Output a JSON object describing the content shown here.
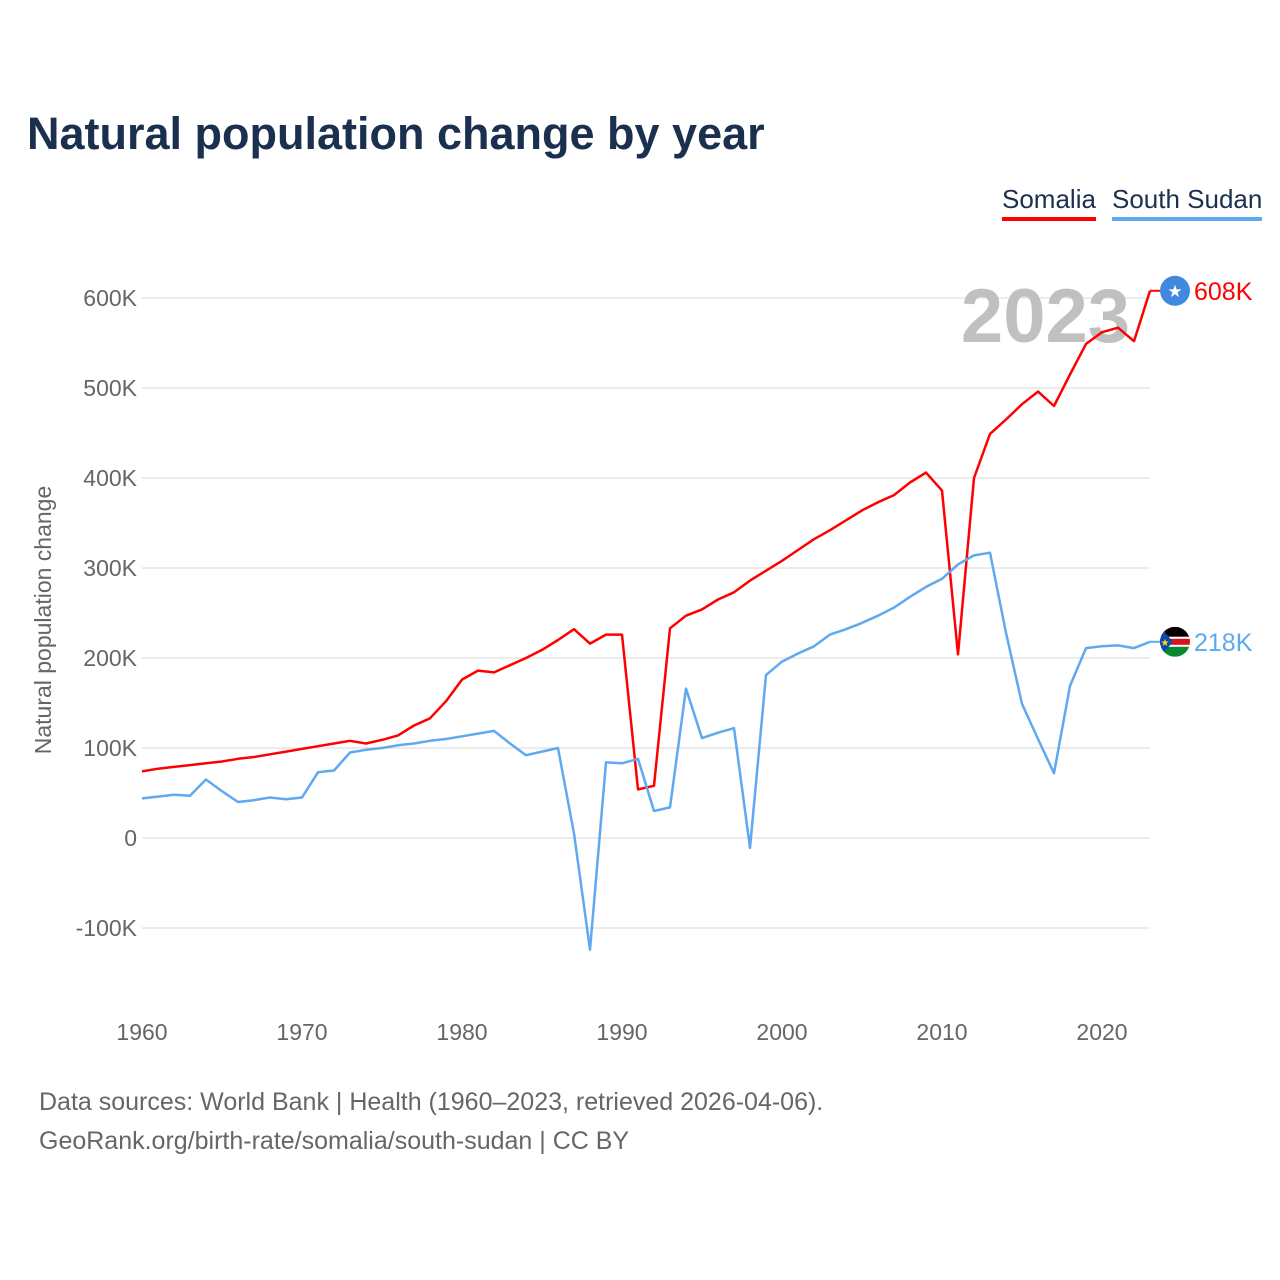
{
  "chart_data": {
    "type": "line",
    "title": "Natural population change by year",
    "ylabel": "Natural population change",
    "xlabel": "",
    "ylim": [
      -170000,
      660000
    ],
    "xlim": [
      1960,
      2023
    ],
    "year_label": "2023",
    "yticks": [
      {
        "value": 600000,
        "label": "600K"
      },
      {
        "value": 500000,
        "label": "500K"
      },
      {
        "value": 400000,
        "label": "400K"
      },
      {
        "value": 300000,
        "label": "300K"
      },
      {
        "value": 200000,
        "label": "200K"
      },
      {
        "value": 100000,
        "label": "100K"
      },
      {
        "value": 0,
        "label": "0"
      },
      {
        "value": -100000,
        "label": "-100K"
      }
    ],
    "xticks": [
      {
        "value": 1960,
        "label": "1960"
      },
      {
        "value": 1970,
        "label": "1970"
      },
      {
        "value": 1980,
        "label": "1980"
      },
      {
        "value": 1990,
        "label": "1990"
      },
      {
        "value": 2000,
        "label": "2000"
      },
      {
        "value": 2010,
        "label": "2010"
      },
      {
        "value": 2020,
        "label": "2020"
      }
    ],
    "grid": true,
    "legend_position": "top-right",
    "x_start": 1960,
    "series": [
      {
        "name": "Somalia",
        "color": "#ff0000",
        "end_label": "608K",
        "flag": "somalia",
        "values_k": [
          74,
          77,
          79,
          81,
          83,
          85,
          88,
          90,
          93,
          96,
          99,
          102,
          105,
          108,
          105,
          109,
          114,
          125,
          133,
          152,
          176,
          186,
          184,
          192,
          200,
          209,
          220,
          232,
          216,
          226,
          226,
          54,
          58,
          233,
          247,
          254,
          265,
          273,
          286,
          297,
          308,
          320,
          332,
          342,
          353,
          364,
          373,
          381,
          395,
          406,
          386,
          204,
          400,
          449,
          465,
          482,
          496,
          480,
          515,
          549,
          562,
          567,
          552,
          608
        ]
      },
      {
        "name": "South Sudan",
        "color": "#5ea9ef",
        "end_label": "218K",
        "flag": "south-sudan",
        "values_k": [
          44,
          46,
          48,
          47,
          65,
          52,
          40,
          42,
          45,
          43,
          45,
          73,
          75,
          95,
          98,
          100,
          103,
          105,
          108,
          110,
          113,
          116,
          119,
          105,
          92,
          96,
          100,
          5,
          -124,
          84,
          83,
          88,
          30,
          34,
          166,
          111,
          117,
          122,
          -11,
          181,
          196,
          205,
          213,
          226,
          232,
          239,
          247,
          256,
          268,
          279,
          288,
          304,
          314,
          317,
          228,
          149,
          110,
          72,
          169,
          211,
          213,
          214,
          211,
          218
        ]
      }
    ]
  },
  "footer": {
    "line1": "Data sources: World Bank | Health (1960–2023, retrieved 2026-04-06).",
    "line2": "GeoRank.org/birth-rate/somalia/south-sudan | CC BY"
  }
}
